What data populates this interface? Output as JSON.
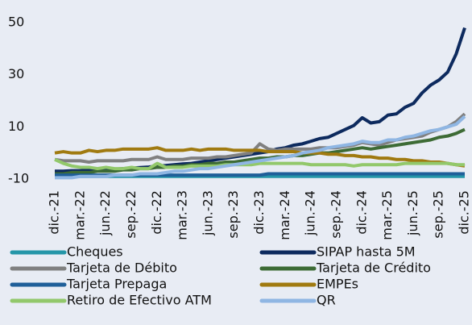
{
  "chart_data": {
    "type": "line",
    "categories": [
      "dic.-21",
      null,
      null,
      "mar.-22",
      null,
      null,
      "jun.-22",
      null,
      null,
      "sep.-22",
      null,
      null,
      "dic.-22",
      null,
      null,
      "mar.-23",
      null,
      null,
      "jun.-23",
      null,
      null,
      "sep.-23",
      null,
      null,
      "dic.-23",
      null,
      null,
      "mar.-24",
      null,
      null,
      "jun.-24",
      null,
      null,
      "sep.-24",
      null,
      null,
      "dic.-24",
      null,
      null,
      "mar.-25",
      null,
      null,
      "jun.-25",
      null,
      null,
      "sep.-25",
      null,
      null,
      "dic.-25"
    ],
    "ylim": [
      -10,
      50
    ],
    "yticks": [
      -10,
      10,
      30,
      50
    ],
    "series": [
      {
        "name": "Cheques",
        "color": "#2596a8",
        "values": [
          -9,
          -9,
          -9,
          -9,
          -9,
          -9,
          -9,
          -9,
          -9,
          -9,
          -9,
          -9,
          -9,
          -9,
          -9,
          -9,
          -9,
          -9,
          -9,
          -9,
          -9,
          -9,
          -9,
          -9,
          -9,
          -9,
          -9,
          -9,
          -9,
          -9,
          -9,
          -9,
          -9,
          -9,
          -9,
          -9,
          -9,
          -9,
          -9,
          -9,
          -9,
          -9,
          -9,
          -9,
          -9,
          -9,
          -9,
          -9,
          -9
        ]
      },
      {
        "name": "SIPAP hasta 5M",
        "color": "#0d2a5e",
        "values": [
          -7,
          -7,
          -6.8,
          -6.8,
          -6.6,
          -6.5,
          -6.4,
          -6.2,
          -6,
          -5.8,
          -5.6,
          -5.4,
          -5,
          -4.8,
          -4.5,
          -4.2,
          -4,
          -3.5,
          -3,
          -2.5,
          -2,
          -1.5,
          -1,
          -0.5,
          0,
          0.5,
          1.5,
          2,
          3,
          3.5,
          4.5,
          5.5,
          6,
          7.5,
          9,
          10.5,
          13.5,
          11.5,
          12,
          14.5,
          15,
          17.5,
          19,
          23,
          26,
          28,
          31,
          38,
          48
        ]
      },
      {
        "name": "Tarjeta de Débito",
        "color": "#808080",
        "values": [
          -2.5,
          -3,
          -3,
          -3,
          -3.5,
          -3,
          -3,
          -3,
          -3,
          -2.5,
          -2.5,
          -2.5,
          -1.5,
          -2.5,
          -2.5,
          -2.5,
          -2,
          -2,
          -2,
          -1.5,
          -1.5,
          -1,
          -0.5,
          0,
          3.5,
          1.5,
          1,
          1.5,
          1.5,
          1.5,
          1.5,
          2,
          2,
          2,
          2.5,
          3,
          4,
          3.5,
          3,
          4,
          5,
          5.5,
          6,
          6.5,
          8,
          9,
          10,
          12,
          15
        ]
      },
      {
        "name": "Tarjeta de Crédito",
        "color": "#3d6b35",
        "values": [
          -8,
          -8,
          -7.5,
          -7.5,
          -7.5,
          -7,
          -7,
          -7,
          -6.5,
          -6.5,
          -6,
          -6,
          -5.5,
          -5.5,
          -5,
          -5,
          -4.5,
          -4.5,
          -4,
          -4,
          -3.5,
          -3.5,
          -3,
          -2.5,
          -2,
          -2,
          -1.5,
          -1.5,
          -1,
          -1,
          -0.5,
          0,
          0,
          0.5,
          1,
          1.5,
          2,
          1.5,
          2,
          2.5,
          3,
          3.5,
          4,
          4.5,
          5,
          6,
          6.5,
          7.5,
          9
        ]
      },
      {
        "name": "Tarjeta Prepaga",
        "color": "#1f5f99",
        "values": [
          -8.5,
          -8.5,
          -8.5,
          -8.5,
          -8.5,
          -8.5,
          -8.5,
          -8.5,
          -8.5,
          -8.5,
          -8.5,
          -8.5,
          -8.5,
          -8.5,
          -8.5,
          -8.5,
          -8.5,
          -8.5,
          -8.5,
          -8.5,
          -8.5,
          -8.5,
          -8.5,
          -8.5,
          -8.5,
          -8,
          -8,
          -8,
          -8,
          -8,
          -8,
          -8,
          -8,
          -8,
          -8,
          -8,
          -8,
          -8,
          -8,
          -8,
          -8,
          -8,
          -8,
          -8,
          -8,
          -8,
          -8,
          -8,
          -8
        ]
      },
      {
        "name": "EMPEs",
        "color": "#a07a10",
        "values": [
          0,
          0.5,
          0,
          0,
          1,
          0.5,
          1,
          1,
          1.5,
          1.5,
          1.5,
          1.5,
          2,
          1,
          1,
          1,
          1.5,
          1,
          1.5,
          1.5,
          1.5,
          1,
          1,
          1,
          1,
          0.5,
          0.5,
          0.5,
          0.5,
          0,
          0,
          0,
          -0.5,
          -0.5,
          -1,
          -1,
          -1.5,
          -1.5,
          -2,
          -2,
          -2.5,
          -2.5,
          -3,
          -3,
          -3.5,
          -3.5,
          -4,
          -4.5,
          -5
        ]
      },
      {
        "name": "Retiro de Efectivo ATM",
        "color": "#92c86b",
        "values": [
          -2.5,
          -4,
          -5,
          -5.5,
          -5.5,
          -6,
          -5.5,
          -6,
          -6,
          -5.5,
          -6,
          -6,
          -4,
          -5.5,
          -5.5,
          -5.5,
          -5,
          -5,
          -5,
          -5,
          -4.5,
          -4.5,
          -4.5,
          -4.5,
          -4,
          -4,
          -4,
          -4,
          -4,
          -4,
          -4.5,
          -4.5,
          -4.5,
          -4.5,
          -4.5,
          -5,
          -4.5,
          -4.5,
          -4.5,
          -4.5,
          -4.5,
          -4,
          -4,
          -4,
          -4,
          -4,
          -4,
          -4.5,
          -4.5
        ]
      },
      {
        "name": "QR",
        "color": "#8fb6e3",
        "values": [
          -9.5,
          -9.5,
          -9.5,
          -9,
          -9,
          -9,
          -9,
          -8.5,
          -8.5,
          -8.5,
          -8,
          -8,
          -8,
          -7.5,
          -7,
          -7,
          -6.5,
          -6,
          -6,
          -5.5,
          -5,
          -4.5,
          -4,
          -3.5,
          -3,
          -2.5,
          -2,
          -1.5,
          -1,
          0,
          0.5,
          1,
          2,
          2.5,
          3,
          3.5,
          4.5,
          4,
          4,
          5,
          5,
          6,
          6.5,
          7.5,
          8.5,
          9,
          10,
          11,
          14
        ]
      }
    ]
  }
}
